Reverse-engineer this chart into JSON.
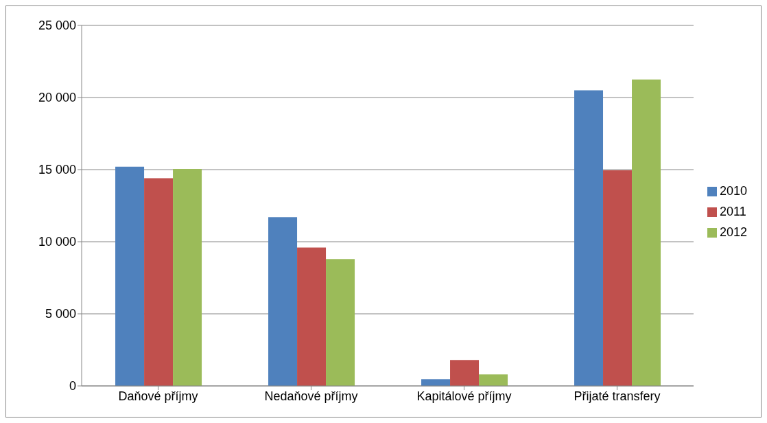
{
  "chart_data": {
    "type": "bar",
    "categories": [
      "Daňové příjmy",
      "Nedaňové příjmy",
      "Kapitálové příjmy",
      "Přijaté transfery"
    ],
    "series": [
      {
        "name": "2010",
        "color": "#4f81bd",
        "values": [
          15200,
          11700,
          470,
          20500
        ]
      },
      {
        "name": "2011",
        "color": "#c0504d",
        "values": [
          14400,
          9600,
          1800,
          14950
        ]
      },
      {
        "name": "2012",
        "color": "#9bbb59",
        "values": [
          15050,
          8800,
          800,
          21250
        ]
      }
    ],
    "ylim": [
      0,
      25000
    ],
    "yticks": [
      {
        "value": 0,
        "label": "0"
      },
      {
        "value": 5000,
        "label": "5 000"
      },
      {
        "value": 10000,
        "label": "10 000"
      },
      {
        "value": 15000,
        "label": "15 000"
      },
      {
        "value": 20000,
        "label": "20 000"
      },
      {
        "value": 25000,
        "label": "25 000"
      }
    ],
    "grid": "y",
    "legend": "right"
  }
}
